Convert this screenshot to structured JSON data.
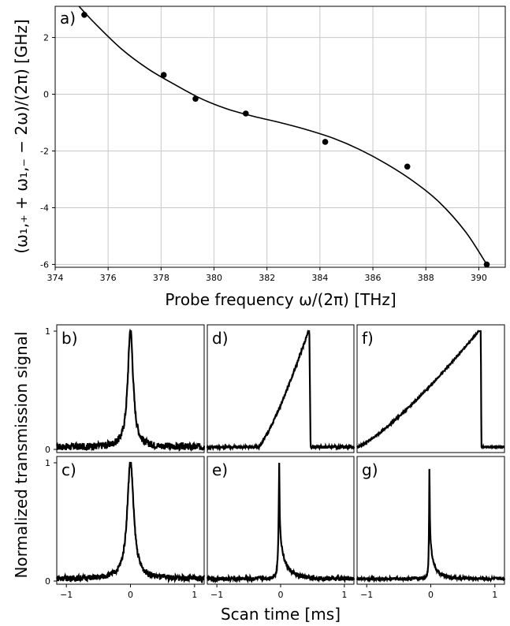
{
  "chart_data": [
    {
      "id": "a",
      "type": "scatter",
      "panel_label": "a)",
      "xlabel": "Probe frequency ω/(2π) [THz]",
      "ylabel": "(ω₁,₊ + ω₁,₋ − 2ω)/(2π) [GHz]",
      "xlim": [
        374,
        391
      ],
      "ylim": [
        -6.1,
        3.1
      ],
      "x_ticks": [
        374,
        376,
        378,
        380,
        382,
        384,
        386,
        388,
        390
      ],
      "y_ticks": [
        -6,
        -4,
        -2,
        0,
        2
      ],
      "grid": true,
      "points": [
        {
          "x": 375.1,
          "y": 2.8
        },
        {
          "x": 378.1,
          "y": 0.68
        },
        {
          "x": 379.3,
          "y": -0.16
        },
        {
          "x": 381.2,
          "y": -0.68
        },
        {
          "x": 384.2,
          "y": -1.68
        },
        {
          "x": 387.3,
          "y": -2.55
        },
        {
          "x": 390.3,
          "y": -6.0
        }
      ],
      "fit_curve": [
        {
          "x": 374.9,
          "y": 3.1
        },
        {
          "x": 375.5,
          "y": 2.5
        },
        {
          "x": 376.5,
          "y": 1.6
        },
        {
          "x": 377.5,
          "y": 0.9
        },
        {
          "x": 378.5,
          "y": 0.35
        },
        {
          "x": 379.5,
          "y": -0.15
        },
        {
          "x": 380.5,
          "y": -0.52
        },
        {
          "x": 381.5,
          "y": -0.78
        },
        {
          "x": 382.5,
          "y": -1.0
        },
        {
          "x": 383.5,
          "y": -1.25
        },
        {
          "x": 384.5,
          "y": -1.55
        },
        {
          "x": 385.5,
          "y": -1.95
        },
        {
          "x": 386.5,
          "y": -2.45
        },
        {
          "x": 387.5,
          "y": -3.05
        },
        {
          "x": 388.5,
          "y": -3.8
        },
        {
          "x": 389.5,
          "y": -4.85
        },
        {
          "x": 390.3,
          "y": -6.0
        }
      ]
    },
    {
      "type": "line",
      "title_shared_ylabel": "Normalized transmission signal",
      "shared_xlabel": "Scan time [ms]",
      "x_ticks": [
        -1,
        0,
        1
      ],
      "xlim": [
        -1.15,
        1.15
      ],
      "ylim": [
        0,
        1
      ],
      "y_ticks": [
        0,
        1
      ],
      "panels": [
        {
          "id": "b",
          "label": "b)",
          "shape": "lorentz",
          "peak_x": 0.0,
          "width": 0.05,
          "noise": 0.05
        },
        {
          "id": "d",
          "label": "d)",
          "shape": "tilted",
          "start_x": -0.35,
          "peak_x": 0.45,
          "drop_width": 0.02,
          "noise": 0.02
        },
        {
          "id": "f",
          "label": "f)",
          "shape": "tilted",
          "start_x": -1.15,
          "peak_x": 0.78,
          "drop_width": 0.01,
          "noise": 0.01
        },
        {
          "id": "c",
          "label": "c)",
          "shape": "lorentz",
          "peak_x": 0.0,
          "width": 0.06,
          "noise": 0.04
        },
        {
          "id": "e",
          "label": "e)",
          "shape": "fano",
          "peak_x": -0.02,
          "width": 0.05,
          "tail": 0.3,
          "noise": 0.03
        },
        {
          "id": "g",
          "label": "g)",
          "shape": "fano",
          "peak_x": -0.02,
          "width": 0.03,
          "tail": 0.25,
          "noise": 0.02
        }
      ]
    }
  ]
}
